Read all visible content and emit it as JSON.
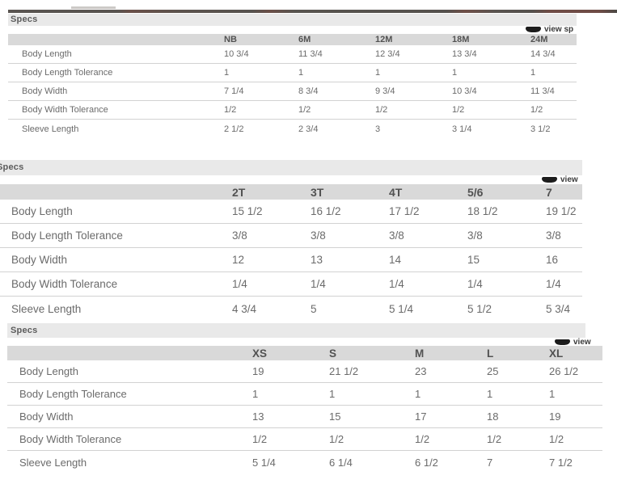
{
  "colors": {
    "title_bar_bg": "#e9e9e9",
    "header_band_bg": "#d9d9d9",
    "row_line": "#d2d2d2",
    "text": "#666666",
    "icon": "#1c1c1c"
  },
  "tables": [
    {
      "title": "Specs",
      "view_label": "view sp",
      "columns": [
        "NB",
        "6M",
        "12M",
        "18M",
        "24M"
      ],
      "rows": [
        {
          "label": "Body Length",
          "values": [
            "10 3/4",
            "11 3/4",
            "12 3/4",
            "13 3/4",
            "14 3/4"
          ]
        },
        {
          "label": "Body Length Tolerance",
          "values": [
            "1",
            "1",
            "1",
            "1",
            "1"
          ]
        },
        {
          "label": "Body Width",
          "values": [
            "7 1/4",
            "8 3/4",
            "9 3/4",
            "10 3/4",
            "11 3/4"
          ]
        },
        {
          "label": "Body Width Tolerance",
          "values": [
            "1/2",
            "1/2",
            "1/2",
            "1/2",
            "1/2"
          ]
        },
        {
          "label": "Sleeve Length",
          "values": [
            "2 1/2",
            "2 3/4",
            "3",
            "3 1/4",
            "3 1/2"
          ]
        }
      ]
    },
    {
      "title": "Specs",
      "view_label": "view",
      "columns": [
        "2T",
        "3T",
        "4T",
        "5/6",
        "7"
      ],
      "rows": [
        {
          "label": "Body Length",
          "values": [
            "15 1/2",
            "16 1/2",
            "17 1/2",
            "18 1/2",
            "19 1/2"
          ]
        },
        {
          "label": "Body Length Tolerance",
          "values": [
            "3/8",
            "3/8",
            "3/8",
            "3/8",
            "3/8"
          ]
        },
        {
          "label": "Body Width",
          "values": [
            "12",
            "13",
            "14",
            "15",
            "16"
          ]
        },
        {
          "label": "Body Width Tolerance",
          "values": [
            "1/4",
            "1/4",
            "1/4",
            "1/4",
            "1/4"
          ]
        },
        {
          "label": "Sleeve Length",
          "values": [
            "4 3/4",
            "5",
            "5 1/4",
            "5 1/2",
            "5 3/4"
          ]
        }
      ]
    },
    {
      "title": "Specs",
      "view_label": "view",
      "columns": [
        "XS",
        "S",
        "M",
        "L",
        "XL"
      ],
      "rows": [
        {
          "label": "Body Length",
          "values": [
            "19",
            "21 1/2",
            "23",
            "25",
            "26 1/2"
          ]
        },
        {
          "label": "Body Length Tolerance",
          "values": [
            "1",
            "1",
            "1",
            "1",
            "1"
          ]
        },
        {
          "label": "Body Width",
          "values": [
            "13",
            "15",
            "17",
            "18",
            "19"
          ]
        },
        {
          "label": "Body Width Tolerance",
          "values": [
            "1/2",
            "1/2",
            "1/2",
            "1/2",
            "1/2"
          ]
        },
        {
          "label": "Sleeve Length",
          "values": [
            "5 1/4",
            "6 1/4",
            "6 1/2",
            "7",
            "7 1/2"
          ]
        }
      ]
    }
  ]
}
